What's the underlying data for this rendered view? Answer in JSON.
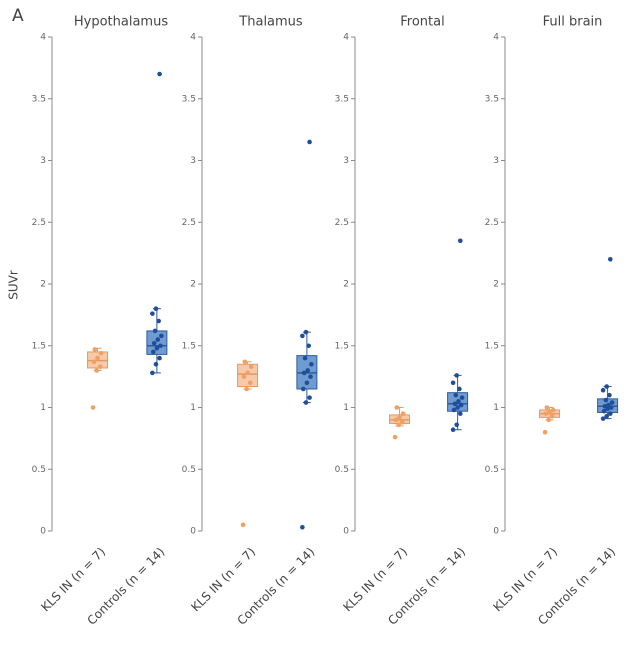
{
  "panel_label": "A",
  "chart_data": [
    {
      "type": "box",
      "title": "Hypothalamus",
      "ylabel": "SUVr",
      "categories": [
        "KLS IN (n = 7)",
        "Controls (n = 14)"
      ],
      "ylim": [
        0,
        4
      ],
      "yticks": [
        0,
        0.5,
        1,
        1.5,
        2,
        2.5,
        3,
        3.5,
        4
      ],
      "boxes": [
        {
          "color": "#f6c9a8",
          "edge": "#e39a66",
          "point_color": "#f0a060",
          "min": 1.3,
          "q1": 1.32,
          "median": 1.38,
          "q3": 1.45,
          "max": 1.48,
          "points": [
            1.0,
            1.3,
            1.33,
            1.37,
            1.4,
            1.44,
            1.47
          ]
        },
        {
          "color": "#6f9bd1",
          "edge": "#2d5c9a",
          "point_color": "#1f4e9a",
          "min": 1.28,
          "q1": 1.43,
          "median": 1.5,
          "q3": 1.62,
          "max": 1.8,
          "points": [
            1.28,
            1.35,
            1.4,
            1.45,
            1.48,
            1.5,
            1.52,
            1.55,
            1.58,
            1.62,
            1.7,
            1.76,
            1.8,
            3.7
          ]
        }
      ]
    },
    {
      "type": "box",
      "title": "Thalamus",
      "categories": [
        "KLS IN (n = 7)",
        "Controls (n = 14)"
      ],
      "ylim": [
        0,
        4
      ],
      "yticks": [
        0,
        0.5,
        1,
        1.5,
        2,
        2.5,
        3,
        3.5,
        4
      ],
      "boxes": [
        {
          "color": "#f6c9a8",
          "edge": "#e39a66",
          "point_color": "#f0a060",
          "min": 1.15,
          "q1": 1.17,
          "median": 1.27,
          "q3": 1.35,
          "max": 1.37,
          "points": [
            0.05,
            1.15,
            1.2,
            1.25,
            1.28,
            1.33,
            1.37
          ]
        },
        {
          "color": "#6f9bd1",
          "edge": "#2d5c9a",
          "point_color": "#1f4e9a",
          "min": 1.04,
          "q1": 1.15,
          "median": 1.28,
          "q3": 1.42,
          "max": 1.61,
          "points": [
            0.03,
            1.04,
            1.08,
            1.15,
            1.2,
            1.25,
            1.28,
            1.3,
            1.35,
            1.4,
            1.5,
            1.58,
            1.61,
            3.15
          ]
        }
      ]
    },
    {
      "type": "box",
      "title": "Frontal",
      "categories": [
        "KLS IN (n = 7)",
        "Controls (n = 14)"
      ],
      "ylim": [
        0,
        4
      ],
      "yticks": [
        0,
        0.5,
        1,
        1.5,
        2,
        2.5,
        3,
        3.5,
        4
      ],
      "boxes": [
        {
          "color": "#f6c9a8",
          "edge": "#e39a66",
          "point_color": "#f0a060",
          "min": 0.85,
          "q1": 0.87,
          "median": 0.9,
          "q3": 0.94,
          "max": 1.0,
          "points": [
            0.76,
            0.86,
            0.88,
            0.9,
            0.92,
            0.95,
            1.0
          ]
        },
        {
          "color": "#6f9bd1",
          "edge": "#2d5c9a",
          "point_color": "#1f4e9a",
          "min": 0.82,
          "q1": 0.97,
          "median": 1.03,
          "q3": 1.12,
          "max": 1.26,
          "points": [
            0.82,
            0.86,
            0.95,
            0.98,
            1.0,
            1.02,
            1.03,
            1.05,
            1.08,
            1.1,
            1.15,
            1.2,
            1.26,
            2.35
          ]
        }
      ]
    },
    {
      "type": "box",
      "title": "Full brain",
      "categories": [
        "KLS IN (n = 7)",
        "Controls (n = 14)"
      ],
      "ylim": [
        0,
        4
      ],
      "yticks": [
        0,
        0.5,
        1,
        1.5,
        2,
        2.5,
        3,
        3.5,
        4
      ],
      "boxes": [
        {
          "color": "#f6c9a8",
          "edge": "#e39a66",
          "point_color": "#f0a060",
          "min": 0.9,
          "q1": 0.92,
          "median": 0.95,
          "q3": 0.98,
          "max": 1.0,
          "points": [
            0.8,
            0.9,
            0.93,
            0.95,
            0.96,
            0.98,
            1.0
          ]
        },
        {
          "color": "#6f9bd1",
          "edge": "#2d5c9a",
          "point_color": "#1f4e9a",
          "min": 0.91,
          "q1": 0.96,
          "median": 1.01,
          "q3": 1.07,
          "max": 1.17,
          "points": [
            0.91,
            0.93,
            0.95,
            0.97,
            0.99,
            1.0,
            1.01,
            1.02,
            1.04,
            1.06,
            1.1,
            1.14,
            1.17,
            2.2
          ]
        }
      ]
    }
  ]
}
